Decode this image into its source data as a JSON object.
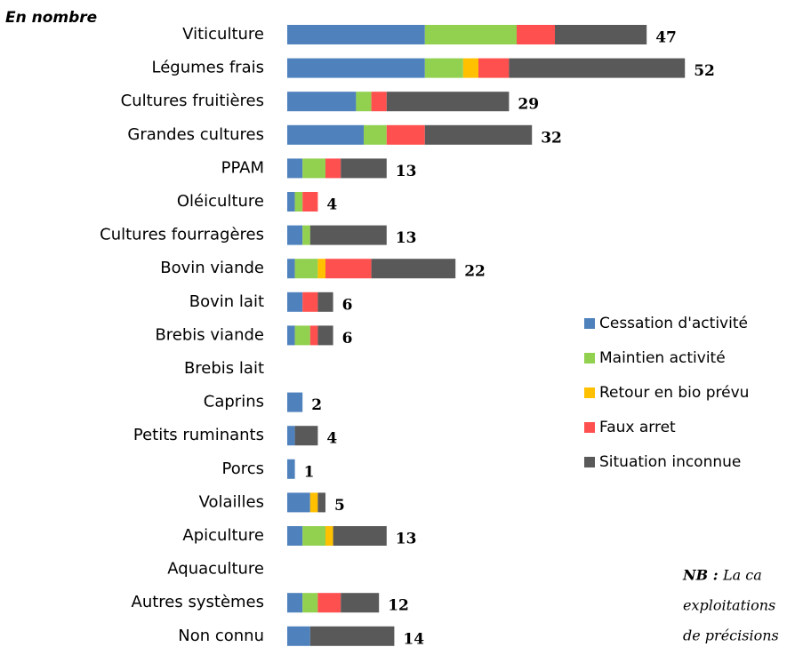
{
  "chart_data": {
    "type": "stacked_barh",
    "title": "En nombre",
    "categories": [
      "Viticulture",
      "Légumes frais",
      "Cultures fruitières",
      "Grandes cultures",
      "PPAM",
      "Oléiculture",
      "Cultures fourragères",
      "Bovin viande",
      "Bovin lait",
      "Brebis viande",
      "Brebis lait",
      "Caprins",
      "Petits ruminants",
      "Porcs",
      "Volailles",
      "Apiculture",
      "Aquaculture",
      "Autres systèmes",
      "Non connu"
    ],
    "series": [
      {
        "name": "Cessation d'activité",
        "color": "#4f81bd",
        "values": [
          18,
          18,
          9,
          10,
          2,
          1,
          2,
          1,
          2,
          1,
          0,
          2,
          1,
          1,
          3,
          2,
          0,
          2,
          3
        ]
      },
      {
        "name": "Maintien activité",
        "color": "#92d050",
        "values": [
          12,
          5,
          2,
          3,
          3,
          1,
          1,
          3,
          0,
          2,
          0,
          0,
          0,
          0,
          0,
          3,
          0,
          2,
          0
        ]
      },
      {
        "name": "Retour en bio prévu",
        "color": "#ffc000",
        "values": [
          0,
          2,
          0,
          0,
          0,
          0,
          0,
          1,
          0,
          0,
          0,
          0,
          0,
          0,
          1,
          1,
          0,
          0,
          0
        ]
      },
      {
        "name": "Faux arret",
        "color": "#ff5050",
        "values": [
          5,
          4,
          2,
          5,
          2,
          2,
          0,
          6,
          2,
          1,
          0,
          0,
          0,
          0,
          0,
          0,
          0,
          3,
          0
        ]
      },
      {
        "name": "Situation inconnue",
        "color": "#595959",
        "values": [
          12,
          23,
          16,
          14,
          6,
          0,
          10,
          11,
          2,
          2,
          0,
          0,
          3,
          0,
          1,
          7,
          0,
          5,
          11
        ]
      }
    ],
    "totals": [
      47,
      52,
      29,
      32,
      13,
      4,
      13,
      22,
      6,
      6,
      null,
      2,
      4,
      1,
      5,
      13,
      null,
      12,
      14
    ],
    "note": {
      "label": "NB :",
      "lines": [
        "La ca",
        "exploitations",
        "de précisions"
      ]
    }
  }
}
